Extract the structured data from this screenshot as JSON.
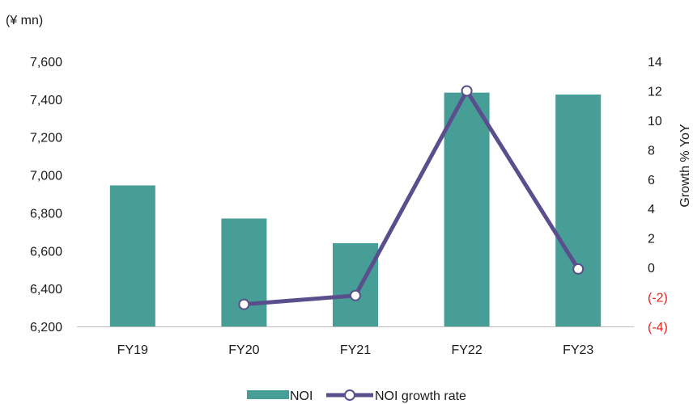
{
  "chart_data": {
    "type": "bar",
    "unit_label": "(¥ mn)",
    "categories": [
      "FY19",
      "FY20",
      "FY21",
      "FY22",
      "FY23"
    ],
    "series": [
      {
        "name": "NOI",
        "type": "bar",
        "axis": "left",
        "color": "#479e96",
        "values": [
          6945,
          6770,
          6640,
          7435,
          7425
        ]
      },
      {
        "name": "NOI growth rate",
        "type": "line",
        "axis": "right",
        "color": "#5a4f8c",
        "values": [
          null,
          -2.5,
          -1.9,
          12.0,
          -0.1
        ]
      }
    ],
    "left_axis": {
      "ylim": [
        6200,
        7600
      ],
      "ticks": [
        {
          "value": 6200,
          "label": "6,200"
        },
        {
          "value": 6400,
          "label": "6,400"
        },
        {
          "value": 6600,
          "label": "6,600"
        },
        {
          "value": 6800,
          "label": "6,800"
        },
        {
          "value": 7000,
          "label": "7,000"
        },
        {
          "value": 7200,
          "label": "7,200"
        },
        {
          "value": 7400,
          "label": "7,400"
        },
        {
          "value": 7600,
          "label": "7,600"
        }
      ]
    },
    "right_axis": {
      "label": "Growth % YoY",
      "ylim": [
        -4,
        14
      ],
      "negative_color": "#e8231e",
      "ticks": [
        {
          "value": -4,
          "label": "(-4)"
        },
        {
          "value": -2,
          "label": "(-2)"
        },
        {
          "value": 0,
          "label": "0"
        },
        {
          "value": 2,
          "label": "2"
        },
        {
          "value": 4,
          "label": "4"
        },
        {
          "value": 6,
          "label": "6"
        },
        {
          "value": 8,
          "label": "8"
        },
        {
          "value": 10,
          "label": "10"
        },
        {
          "value": 12,
          "label": "12"
        },
        {
          "value": 14,
          "label": "14"
        }
      ]
    },
    "grid": false,
    "legend_position": "bottom"
  }
}
